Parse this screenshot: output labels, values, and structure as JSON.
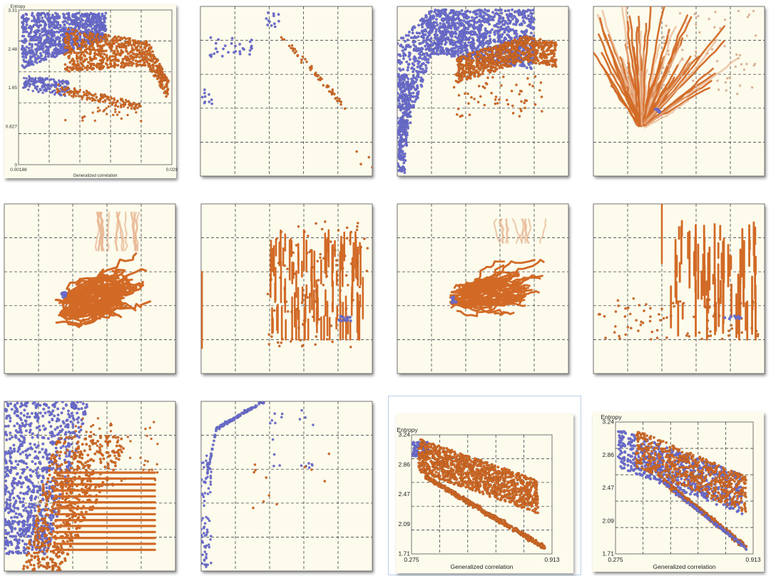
{
  "colors": {
    "panel_bg": "#fcfbec",
    "grid": "#2a2a2a",
    "blue": "#6d6fd2",
    "orange": "#d26a26",
    "orange_faded": "#e8b592"
  },
  "chart_data": [
    {
      "type": "scatter",
      "row": 0,
      "col": 0,
      "ylabel": "Entropy",
      "xlabel": "Generalized correlation",
      "xticks": [
        "0.00188",
        "0.029"
      ],
      "yticks": [
        "3.31",
        "2.48",
        "1.65",
        "0.827",
        "0"
      ]
    },
    {
      "type": "scatter",
      "row": 0,
      "col": 1
    },
    {
      "type": "scatter",
      "row": 0,
      "col": 2
    },
    {
      "type": "scatter",
      "row": 0,
      "col": 3
    },
    {
      "type": "scatter",
      "row": 1,
      "col": 0
    },
    {
      "type": "scatter",
      "row": 1,
      "col": 1
    },
    {
      "type": "scatter",
      "row": 1,
      "col": 2
    },
    {
      "type": "scatter",
      "row": 1,
      "col": 3
    },
    {
      "type": "scatter",
      "row": 2,
      "col": 0
    },
    {
      "type": "scatter",
      "row": 2,
      "col": 1
    },
    {
      "type": "scatter",
      "row": 2,
      "col": 2,
      "ylabel": "Entropy",
      "xlabel": "Generalized correlation",
      "xticks": [
        "0.275",
        "0.913"
      ],
      "yticks": [
        "3.24",
        "2.86",
        "2.47",
        "2.09",
        "1.71"
      ]
    },
    {
      "type": "scatter",
      "row": 2,
      "col": 3,
      "ylabel": "Entropy",
      "xlabel": "Generalized correlation",
      "xticks": [
        "0.275",
        "0.913"
      ],
      "yticks": [
        "3.24",
        "2.86",
        "2.47",
        "2.09",
        "1.71"
      ]
    }
  ]
}
